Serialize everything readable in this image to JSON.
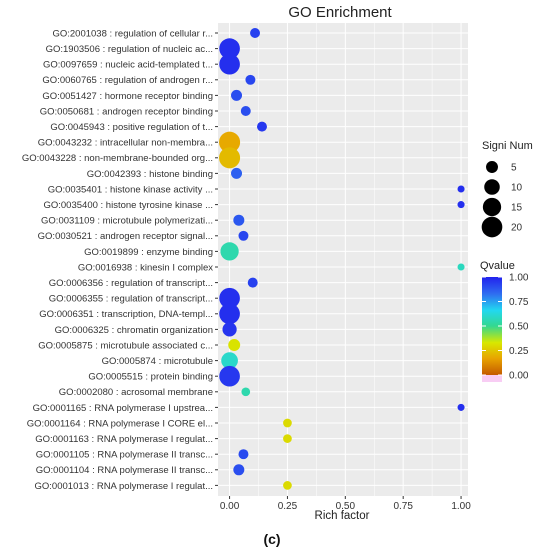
{
  "chart_data": {
    "type": "scatter",
    "title": "GO Enrichment",
    "xlabel": "Rich factor",
    "ylabel": "",
    "xlim": [
      -0.05,
      1.03
    ],
    "xticks": [
      "0.00",
      "0.25",
      "0.50",
      "0.75",
      "1.00"
    ],
    "xtick_values": [
      0,
      0.25,
      0.5,
      0.75,
      1.0
    ],
    "grid": true,
    "legend_position": "right",
    "size_legend": {
      "title": "Signi Num",
      "values": [
        5,
        10,
        15,
        20
      ],
      "labels": [
        "5",
        "10",
        "15",
        "20"
      ]
    },
    "color_legend": {
      "title": "Qvalue",
      "range": [
        0,
        1
      ],
      "labels": [
        "1.00",
        "0.75",
        "0.50",
        "0.25",
        "0.00"
      ],
      "label_values": [
        1.0,
        0.75,
        0.5,
        0.25,
        0.0
      ]
    },
    "terms": [
      "GO:2001038 : regulation of cellular r...",
      "GO:1903506 : regulation of nucleic ac...",
      "GO:0097659 : nucleic acid-templated t...",
      "GO:0060765 : regulation of androgen r...",
      "GO:0051427 : hormone receptor binding",
      "GO:0050681 : androgen receptor binding",
      "GO:0045943 : positive regulation of t...",
      "GO:0043232 : intracellular non-membra...",
      "GO:0043228 : non-membrane-bounded org...",
      "GO:0042393 : histone binding",
      "GO:0035401 : histone kinase activity ...",
      "GO:0035400 : histone tyrosine kinase ...",
      "GO:0031109 : microtubule polymerizati...",
      "GO:0030521 : androgen receptor signal...",
      "GO:0019899 : enzyme binding",
      "GO:0016938 : kinesin I complex",
      "GO:0006356 : regulation of transcript...",
      "GO:0006355 : regulation of transcript...",
      "GO:0006351 : transcription, DNA-templ...",
      "GO:0006325 : chromatin organization",
      "GO:0005875 : microtubule associated c...",
      "GO:0005874 : microtubule",
      "GO:0005515 : protein binding",
      "GO:0002080 : acrosomal membrane",
      "GO:0001165 : RNA polymerase I upstrea...",
      "GO:0001164 : RNA polymerase I CORE el...",
      "GO:0001163 : RNA polymerase I regulat...",
      "GO:0001105 : RNA polymerase II transc...",
      "GO:0001104 : RNA polymerase II transc...",
      "GO:0001013 : RNA polymerase I regulat..."
    ],
    "points": [
      {
        "term_index": 0,
        "x": 0.11,
        "size": 3,
        "q": 0.93
      },
      {
        "term_index": 1,
        "x": 0.0,
        "size": 20,
        "q": 0.97
      },
      {
        "term_index": 2,
        "x": 0.0,
        "size": 20,
        "q": 0.97
      },
      {
        "term_index": 3,
        "x": 0.09,
        "size": 3,
        "q": 0.92
      },
      {
        "term_index": 4,
        "x": 0.03,
        "size": 4,
        "q": 0.9
      },
      {
        "term_index": 5,
        "x": 0.07,
        "size": 3,
        "q": 0.9
      },
      {
        "term_index": 6,
        "x": 0.14,
        "size": 3,
        "q": 0.95
      },
      {
        "term_index": 7,
        "x": 0.0,
        "size": 21,
        "q": 0.18
      },
      {
        "term_index": 8,
        "x": 0.0,
        "size": 21,
        "q": 0.22
      },
      {
        "term_index": 9,
        "x": 0.03,
        "size": 4,
        "q": 0.86
      },
      {
        "term_index": 10,
        "x": 1.0,
        "size": 1,
        "q": 0.97
      },
      {
        "term_index": 11,
        "x": 1.0,
        "size": 1,
        "q": 0.97
      },
      {
        "term_index": 12,
        "x": 0.04,
        "size": 4,
        "q": 0.88
      },
      {
        "term_index": 13,
        "x": 0.06,
        "size": 3,
        "q": 0.92
      },
      {
        "term_index": 14,
        "x": 0.0,
        "size": 15,
        "q": 0.55
      },
      {
        "term_index": 15,
        "x": 1.0,
        "size": 1,
        "q": 0.58
      },
      {
        "term_index": 16,
        "x": 0.1,
        "size": 3,
        "q": 0.93
      },
      {
        "term_index": 17,
        "x": 0.0,
        "size": 20,
        "q": 0.97
      },
      {
        "term_index": 18,
        "x": 0.0,
        "size": 20,
        "q": 0.97
      },
      {
        "term_index": 19,
        "x": 0.0,
        "size": 8,
        "q": 0.96
      },
      {
        "term_index": 20,
        "x": 0.02,
        "size": 5,
        "q": 0.32
      },
      {
        "term_index": 21,
        "x": 0.0,
        "size": 12,
        "q": 0.6
      },
      {
        "term_index": 22,
        "x": 0.0,
        "size": 20,
        "q": 0.95
      },
      {
        "term_index": 23,
        "x": 0.07,
        "size": 2,
        "q": 0.55
      },
      {
        "term_index": 24,
        "x": 1.0,
        "size": 1,
        "q": 0.97
      },
      {
        "term_index": 25,
        "x": 0.25,
        "size": 2,
        "q": 0.3
      },
      {
        "term_index": 26,
        "x": 0.25,
        "size": 2,
        "q": 0.3
      },
      {
        "term_index": 27,
        "x": 0.06,
        "size": 3,
        "q": 0.91
      },
      {
        "term_index": 28,
        "x": 0.04,
        "size": 4,
        "q": 0.9
      },
      {
        "term_index": 29,
        "x": 0.25,
        "size": 2,
        "q": 0.3
      }
    ],
    "colors": {
      "scale": [
        "#c45a00",
        "#e8a400",
        "#d8e800",
        "#33d890",
        "#22d8f0",
        "#2f6cf0",
        "#2222ee"
      ],
      "grid": "#ffffff",
      "panel": "#ebebeb",
      "outline_pink": "#f5b8f0"
    }
  },
  "caption": "(c)"
}
